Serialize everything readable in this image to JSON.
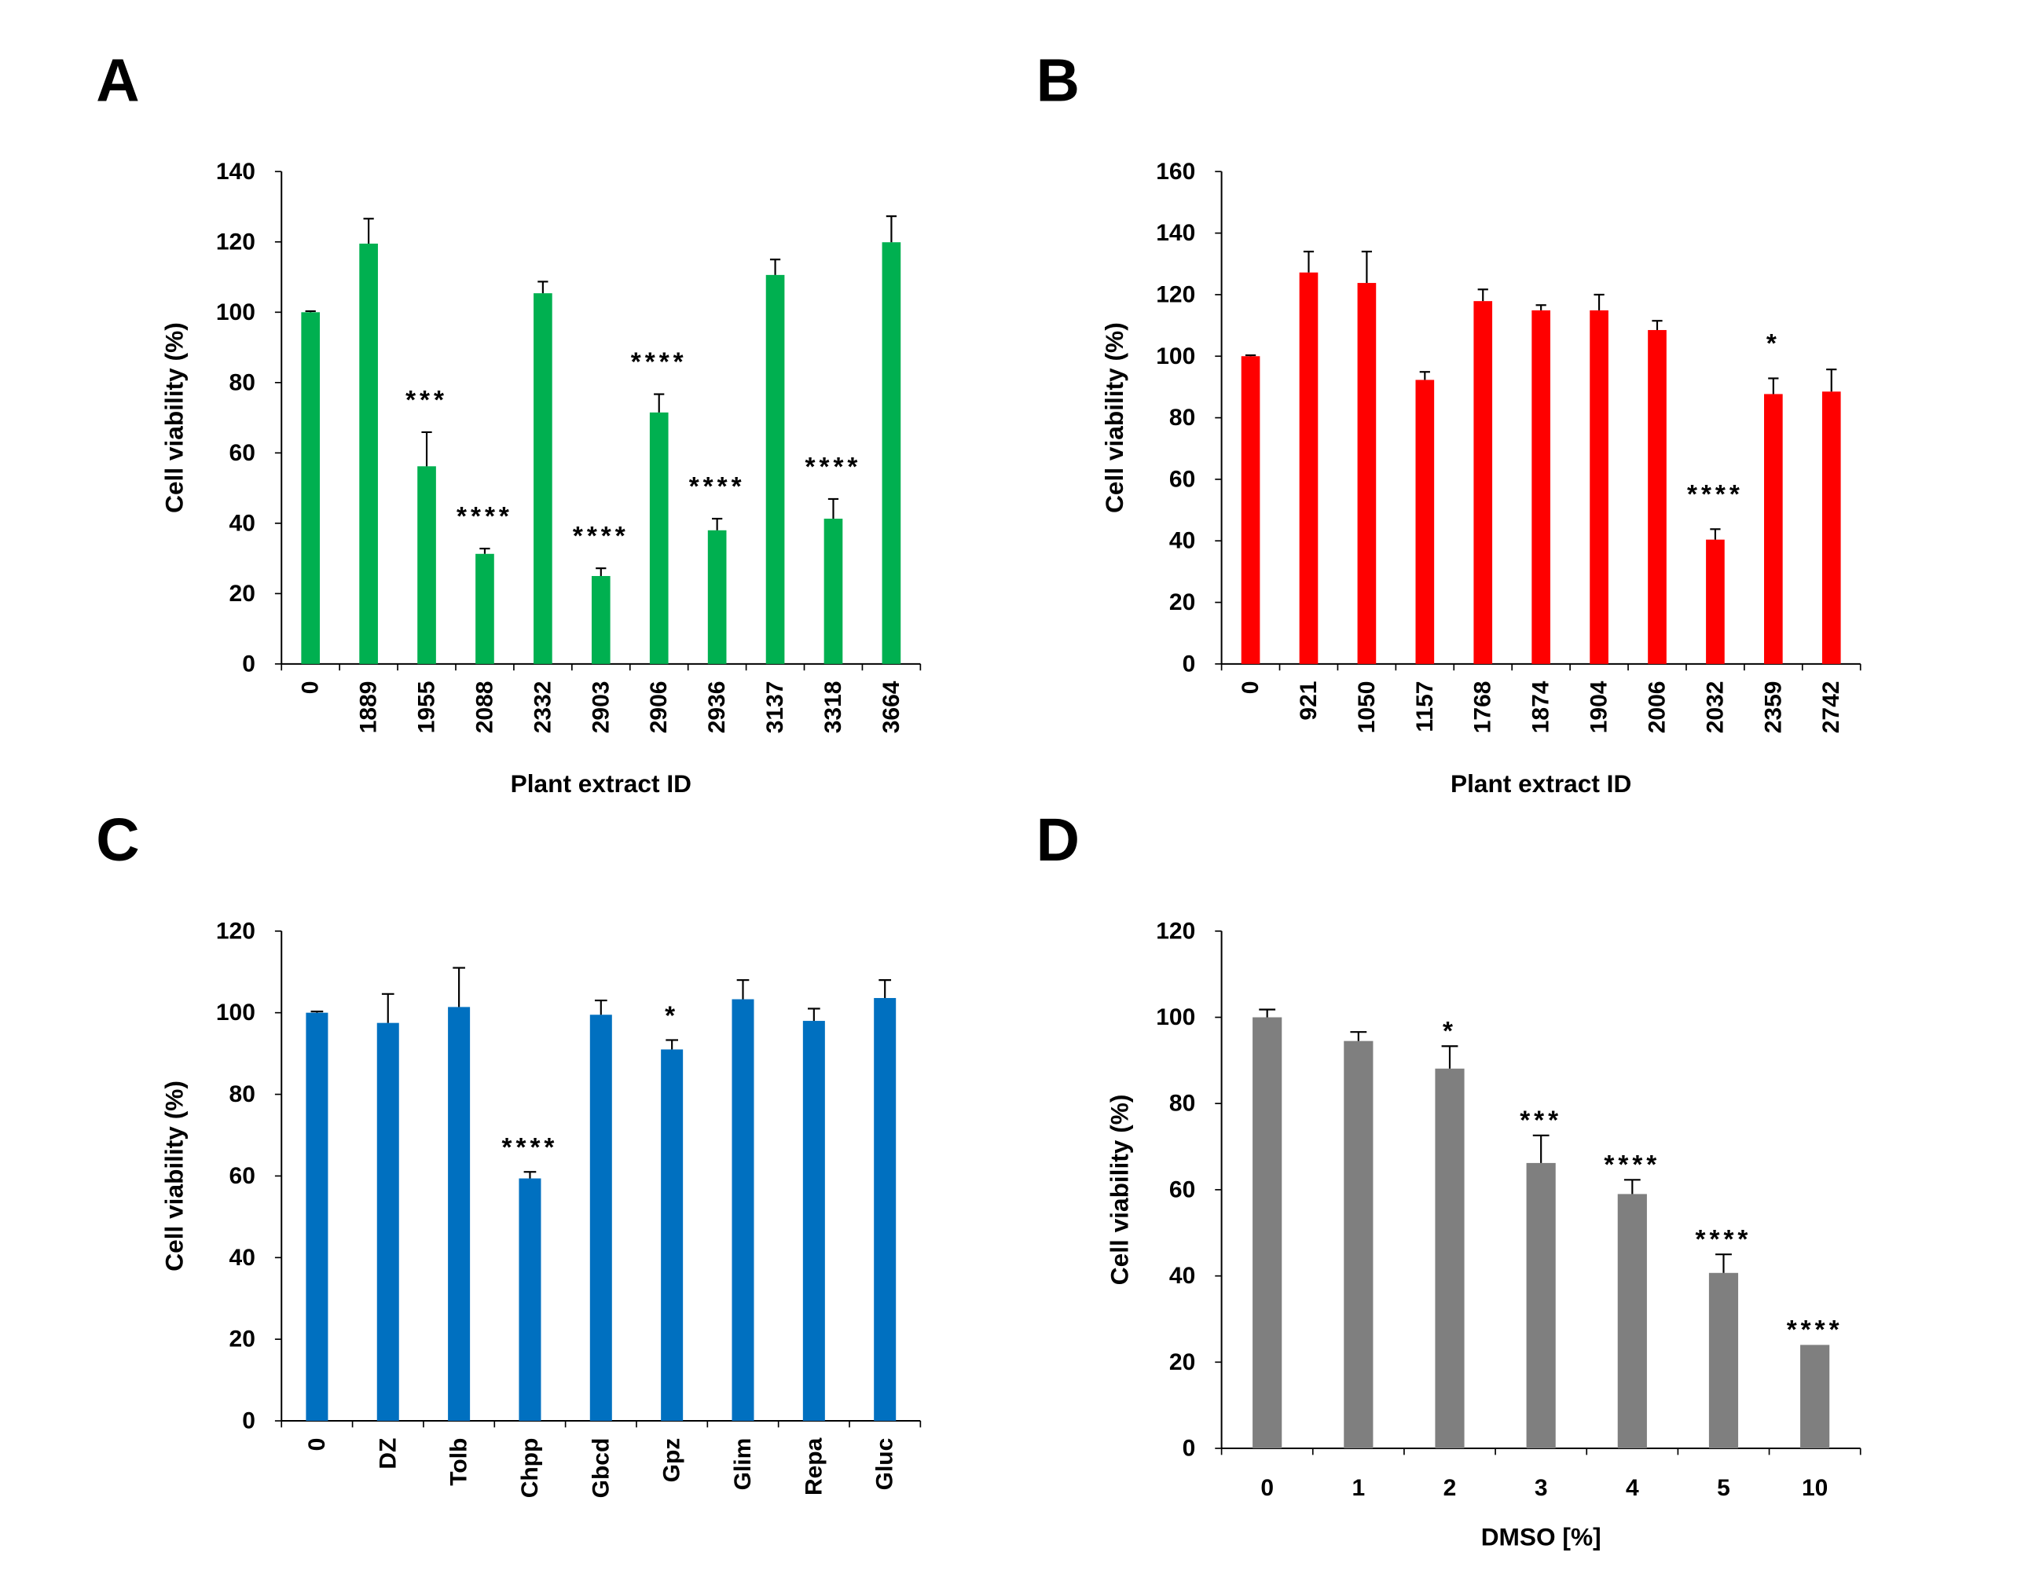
{
  "chart_data": [
    {
      "panel_label": "A",
      "type": "bar",
      "categories": [
        "0",
        "1889",
        "1955",
        "2088",
        "2332",
        "2903",
        "2906",
        "2936",
        "3137",
        "3318",
        "3664"
      ],
      "values": [
        100,
        119.5,
        56.2,
        31.3,
        105.4,
        25.0,
        71.5,
        38.0,
        110.6,
        41.3,
        119.9
      ],
      "error": [
        0.3,
        7.1,
        9.7,
        1.5,
        3.3,
        2.2,
        5.2,
        3.3,
        4.4,
        5.6,
        7.4
      ],
      "significance": [
        null,
        null,
        "***",
        "****",
        null,
        "****",
        "****",
        "****",
        null,
        "****",
        null
      ],
      "xlabel": "Plant extract ID",
      "ylabel": "Cell viability (%)",
      "ylim": [
        0,
        140
      ],
      "yticks": [
        0,
        20,
        40,
        60,
        80,
        100,
        120,
        140
      ],
      "grid": false,
      "color": "#00B050"
    },
    {
      "panel_label": "B",
      "type": "bar",
      "categories": [
        "0",
        "921",
        "1050",
        "1157",
        "1768",
        "1874",
        "1904",
        "2006",
        "2032",
        "2359",
        "2742"
      ],
      "values": [
        100,
        127.2,
        123.8,
        92.3,
        117.9,
        114.9,
        114.9,
        108.5,
        40.4,
        87.7,
        88.5
      ],
      "error": [
        0.3,
        6.8,
        10.2,
        2.6,
        3.8,
        1.7,
        5.1,
        3.0,
        3.4,
        5.1,
        7.2
      ],
      "significance": [
        null,
        null,
        null,
        null,
        null,
        null,
        null,
        null,
        "****",
        "*",
        null
      ],
      "xlabel": "Plant extract ID",
      "ylabel": "Cell viability (%)",
      "ylim": [
        0,
        160
      ],
      "yticks": [
        0,
        20,
        40,
        60,
        80,
        100,
        120,
        140,
        160
      ],
      "grid": false,
      "color": "#FF0000"
    },
    {
      "panel_label": "C",
      "type": "bar",
      "categories": [
        "0",
        "DZ",
        "Tolb",
        "Chpp",
        "Gbcd",
        "Gpz",
        "Glim",
        "Repa",
        "Gluc"
      ],
      "values": [
        100,
        97.5,
        101.4,
        59.4,
        99.5,
        91.0,
        103.3,
        98.0,
        103.6
      ],
      "error": [
        0.3,
        7.1,
        9.6,
        1.6,
        3.5,
        2.3,
        4.7,
        3.0,
        4.4
      ],
      "significance": [
        null,
        null,
        null,
        "****",
        null,
        "*",
        null,
        null,
        null
      ],
      "ylabel": "Cell viability (%)",
      "ylim": [
        0,
        120
      ],
      "yticks": [
        0,
        20,
        40,
        60,
        80,
        100,
        120
      ],
      "grid": false,
      "color": "#0070C0"
    },
    {
      "panel_label": "D",
      "type": "bar",
      "categories": [
        "0",
        "1",
        "2",
        "3",
        "4",
        "5",
        "10"
      ],
      "values": [
        100,
        94.5,
        88.1,
        66.2,
        59.0,
        40.7,
        24.0
      ],
      "error": [
        1.8,
        2.1,
        5.2,
        6.4,
        3.3,
        4.3,
        0
      ],
      "significance": [
        null,
        null,
        "*",
        "***",
        "****",
        "****",
        "****"
      ],
      "xlabel": "DMSO [%]",
      "ylabel": "Cell viability (%)",
      "ylim": [
        0,
        120
      ],
      "yticks": [
        0,
        20,
        40,
        60,
        80,
        100,
        120
      ],
      "grid": false,
      "color": "#7F7F7F"
    }
  ]
}
